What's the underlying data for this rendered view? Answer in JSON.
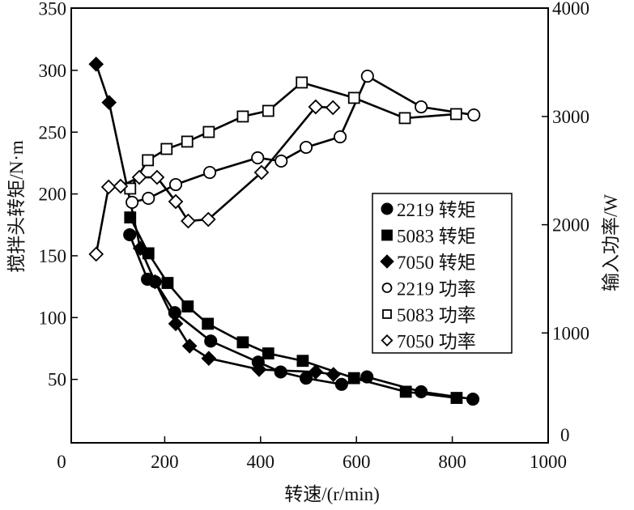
{
  "chart_data": {
    "type": "line",
    "title": "",
    "xlabel": "转速/(r/min)",
    "ylabel": "搅拌头转矩/N·m",
    "y2label": "输入功率/W",
    "xlim": [
      0,
      1000
    ],
    "ylim": [
      0,
      350
    ],
    "y2lim": [
      0,
      4000
    ],
    "xticks": [
      "0",
      "200",
      "400",
      "600",
      "800",
      "1000"
    ],
    "yticks": [
      "50",
      "100",
      "150",
      "200",
      "250",
      "300",
      "350"
    ],
    "y2ticks": [
      "0",
      "1000",
      "2000",
      "3000",
      "4000"
    ],
    "grid": false,
    "legend_position": "center-right",
    "series": [
      {
        "name": "2219 转矩",
        "axis": "left",
        "marker": "circle",
        "filled": true,
        "x": [
          127,
          164,
          180,
          221,
          296,
          395,
          442,
          495,
          569,
          622,
          735,
          843
        ],
        "y": [
          167,
          131,
          129,
          104,
          81,
          64,
          56,
          51,
          46,
          52,
          40,
          34
        ]
      },
      {
        "name": "5083 转矩",
        "axis": "left",
        "marker": "square",
        "filled": true,
        "x": [
          128,
          166,
          206,
          248,
          290,
          363,
          416,
          488,
          595,
          703,
          809
        ],
        "y": [
          181,
          152,
          128,
          109,
          95,
          80,
          71,
          65,
          51,
          40,
          35
        ]
      },
      {
        "name": "7050 转矩",
        "axis": "left",
        "marker": "diamond",
        "filled": true,
        "x": [
          57,
          84,
          149,
          180,
          223,
          252,
          292,
          397,
          515,
          552
        ],
        "y": [
          305,
          274,
          156,
          129,
          95,
          77,
          67,
          58,
          56,
          54
        ]
      },
      {
        "name": "2219 功率",
        "axis": "right",
        "marker": "circle",
        "filled": false,
        "x": [
          132,
          166,
          223,
          294,
          394,
          443,
          495,
          566,
          623,
          735,
          845
        ],
        "y": [
          2207,
          2244,
          2371,
          2483,
          2618,
          2588,
          2715,
          2812,
          3373,
          3089,
          3014
        ]
      },
      {
        "name": "5083 功率",
        "axis": "right",
        "marker": "square",
        "filled": false,
        "x": [
          128,
          165,
          204,
          247,
          292,
          363,
          416,
          486,
          595,
          701,
          808
        ],
        "y": [
          2334,
          2596,
          2700,
          2768,
          2857,
          3000,
          3052,
          3314,
          3172,
          2985,
          3022
        ]
      },
      {
        "name": "7050 功率",
        "axis": "right",
        "marker": "diamond",
        "filled": false,
        "x": [
          57,
          83,
          108,
          147,
          184,
          223,
          249,
          291,
          402,
          515,
          551
        ],
        "y": [
          1728,
          2349,
          2356,
          2438,
          2438,
          2214,
          2034,
          2049,
          2483,
          3089,
          3082
        ]
      }
    ]
  }
}
